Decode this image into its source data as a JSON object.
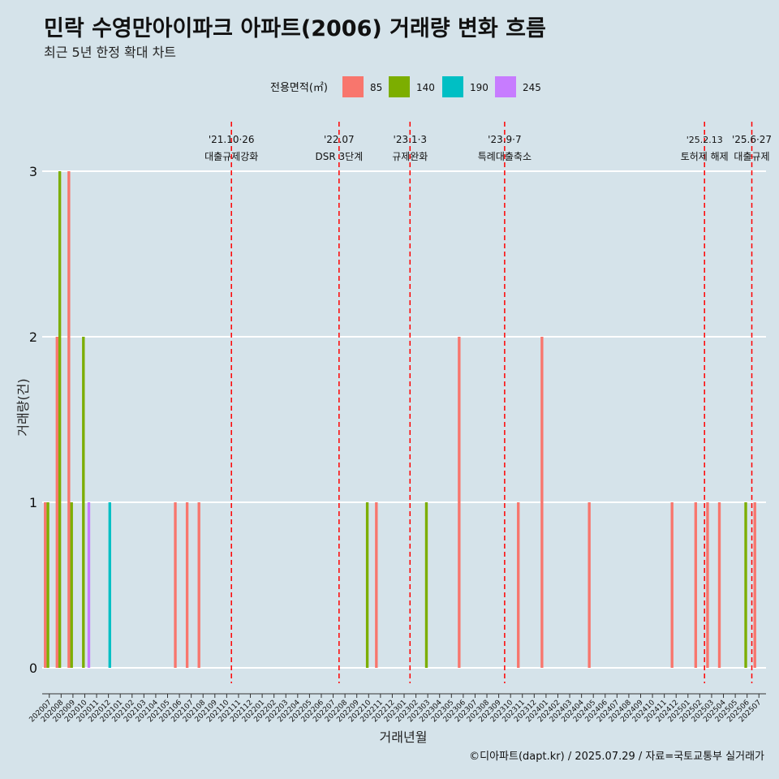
{
  "title": "민락 수영만아이파크 아파트(2006) 거래량 변화 흐름",
  "subtitle": "최근 5년 한정 확대 차트",
  "caption": "©디아파트(dapt.kr) / 2025.07.29 / 자료=국토교통부 실거래가",
  "chart_data": {
    "type": "bar",
    "xlabel": "거래년월",
    "ylabel": "거래량(건)",
    "ylim": [
      0,
      3
    ],
    "yticks": [
      0,
      1,
      2,
      3
    ],
    "grid": true,
    "legend": {
      "title": "전용면적(㎡)",
      "position": "top",
      "entries": [
        {
          "name": "85",
          "color": "#f8766d"
        },
        {
          "name": "140",
          "color": "#7cae00"
        },
        {
          "name": "190",
          "color": "#00bfc4"
        },
        {
          "name": "245",
          "color": "#c77cff"
        }
      ]
    },
    "categories": [
      "202007",
      "202008",
      "202009",
      "202010",
      "202011",
      "202012",
      "202101",
      "202102",
      "202103",
      "202104",
      "202105",
      "202106",
      "202107",
      "202108",
      "202109",
      "202110",
      "202111",
      "202112",
      "202201",
      "202202",
      "202203",
      "202204",
      "202205",
      "202206",
      "202207",
      "202208",
      "202209",
      "202210",
      "202211",
      "202212",
      "202301",
      "202302",
      "202303",
      "202304",
      "202305",
      "202306",
      "202307",
      "202308",
      "202309",
      "202310",
      "202311",
      "202312",
      "202401",
      "202402",
      "202403",
      "202404",
      "202405",
      "202406",
      "202407",
      "202408",
      "202409",
      "202410",
      "202411",
      "202412",
      "202501",
      "202502",
      "202503",
      "202504",
      "202505",
      "202506",
      "202507"
    ],
    "series": [
      {
        "name": "85",
        "values": [
          1,
          2,
          3,
          0,
          0,
          0,
          0,
          0,
          0,
          0,
          0,
          1,
          1,
          1,
          0,
          0,
          0,
          0,
          0,
          0,
          0,
          0,
          0,
          0,
          0,
          0,
          0,
          0,
          1,
          0,
          0,
          0,
          0,
          0,
          0,
          2,
          0,
          0,
          0,
          0,
          1,
          0,
          2,
          0,
          0,
          0,
          1,
          0,
          0,
          0,
          0,
          0,
          0,
          1,
          0,
          1,
          1,
          1,
          0,
          0,
          1
        ]
      },
      {
        "name": "140",
        "values": [
          1,
          3,
          1,
          2,
          0,
          0,
          0,
          0,
          0,
          0,
          0,
          0,
          0,
          0,
          0,
          0,
          0,
          0,
          0,
          0,
          0,
          0,
          0,
          0,
          0,
          0,
          0,
          1,
          0,
          0,
          0,
          0,
          1,
          0,
          0,
          0,
          0,
          0,
          0,
          0,
          0,
          0,
          0,
          0,
          0,
          0,
          0,
          0,
          0,
          0,
          0,
          0,
          0,
          0,
          0,
          0,
          0,
          0,
          0,
          1,
          0
        ]
      },
      {
        "name": "190",
        "values": [
          0,
          0,
          0,
          0,
          0,
          1,
          0,
          0,
          0,
          0,
          0,
          0,
          0,
          0,
          0,
          0,
          0,
          0,
          0,
          0,
          0,
          0,
          0,
          0,
          0,
          0,
          0,
          0,
          0,
          0,
          0,
          0,
          0,
          0,
          0,
          0,
          0,
          0,
          0,
          0,
          0,
          0,
          0,
          0,
          0,
          0,
          0,
          0,
          0,
          0,
          0,
          0,
          0,
          0,
          0,
          0,
          0,
          0,
          0,
          0,
          0
        ]
      },
      {
        "name": "245",
        "values": [
          0,
          0,
          0,
          1,
          0,
          0,
          0,
          0,
          0,
          0,
          0,
          0,
          0,
          0,
          0,
          0,
          0,
          0,
          0,
          0,
          0,
          0,
          0,
          0,
          0,
          0,
          0,
          0,
          0,
          0,
          0,
          0,
          0,
          0,
          0,
          0,
          0,
          0,
          0,
          0,
          0,
          0,
          0,
          0,
          0,
          0,
          0,
          0,
          0,
          0,
          0,
          0,
          0,
          0,
          0,
          0,
          0,
          0,
          0,
          0,
          0
        ]
      }
    ],
    "annotations": [
      {
        "x": 15.4,
        "line1": "'21.10·26",
        "line2": "대출규제강화"
      },
      {
        "x": 24.5,
        "line1": "'22.07",
        "line2": "DSR 3단계"
      },
      {
        "x": 30.5,
        "line1": "'23.1·3",
        "line2": "규제완화"
      },
      {
        "x": 38.5,
        "line1": "'23.9·7",
        "line2": "특례대출축소"
      },
      {
        "x": 55.4,
        "line1": "'25.2.13",
        "line2": "토허제 해제"
      },
      {
        "x": 59.4,
        "line1": "'25.6·27",
        "line2": "대출규제"
      }
    ]
  }
}
